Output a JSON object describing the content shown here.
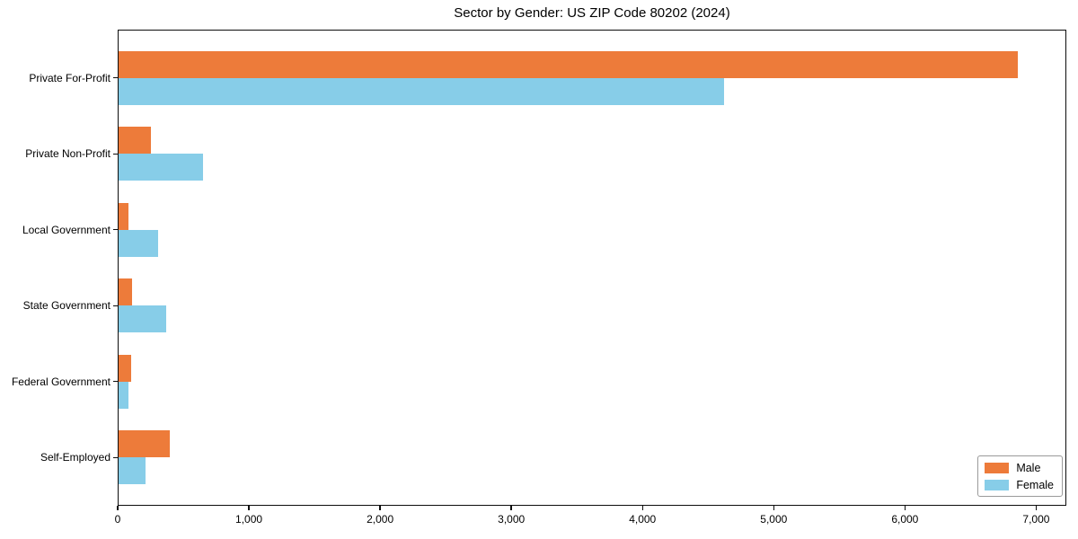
{
  "chart_data": {
    "type": "bar",
    "orientation": "horizontal",
    "title": "Sector by Gender: US ZIP Code 80202 (2024)",
    "categories": [
      "Private For-Profit",
      "Private Non-Profit",
      "Local Government",
      "State Government",
      "Federal Government",
      "Self-Employed"
    ],
    "series": [
      {
        "name": "Male",
        "color": "#ed7b3a",
        "values": [
          6860,
          255,
          80,
          110,
          100,
          400
        ]
      },
      {
        "name": "Female",
        "color": "#87cde8",
        "values": [
          4620,
          650,
          310,
          370,
          85,
          210
        ]
      }
    ],
    "xlabel": "",
    "ylabel": "",
    "xticks": [
      0,
      1000,
      2000,
      3000,
      4000,
      5000,
      6000,
      7000
    ],
    "xtick_labels": [
      "0",
      "1,000",
      "2,000",
      "3,000",
      "4,000",
      "5,000",
      "6,000",
      "7,000"
    ],
    "xlim": [
      0,
      7230
    ],
    "grid": false,
    "legend_position": "lower right",
    "background_color": "#ffffff",
    "text_color": "#000000"
  }
}
